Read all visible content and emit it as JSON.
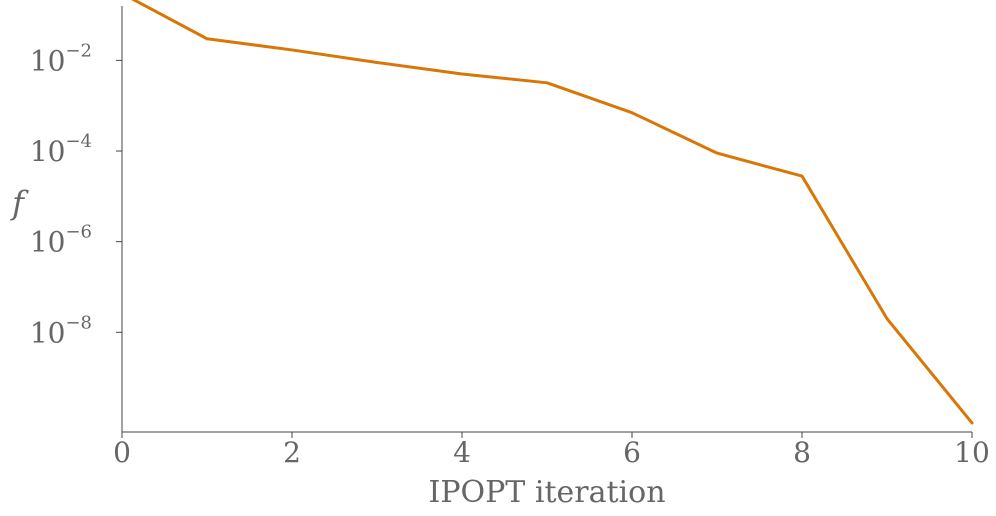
{
  "chart_data": {
    "type": "line",
    "xlabel": "IPOPT iteration",
    "ylabel": "f",
    "xlim": [
      0,
      10
    ],
    "ylim_log10": [
      -10.2,
      -0.8
    ],
    "y_scale": "log",
    "x_ticks": [
      0,
      2,
      4,
      6,
      8,
      10
    ],
    "y_ticks": [
      {
        "exponent": -2,
        "base": "10",
        "power": "−2"
      },
      {
        "exponent": -4,
        "base": "10",
        "power": "−4"
      },
      {
        "exponent": -6,
        "base": "10",
        "power": "−6"
      },
      {
        "exponent": -8,
        "base": "10",
        "power": "−8"
      }
    ],
    "x": [
      0,
      1,
      2,
      3,
      4,
      5,
      6,
      7,
      8,
      9,
      10
    ],
    "series": [
      {
        "values": [
          0.3,
          0.03,
          0.017,
          0.009,
          0.005,
          0.0032,
          0.0007,
          9e-05,
          2.8e-05,
          2e-08,
          1e-10
        ],
        "color": "#d97706"
      }
    ],
    "grid": false,
    "legend": "none"
  }
}
